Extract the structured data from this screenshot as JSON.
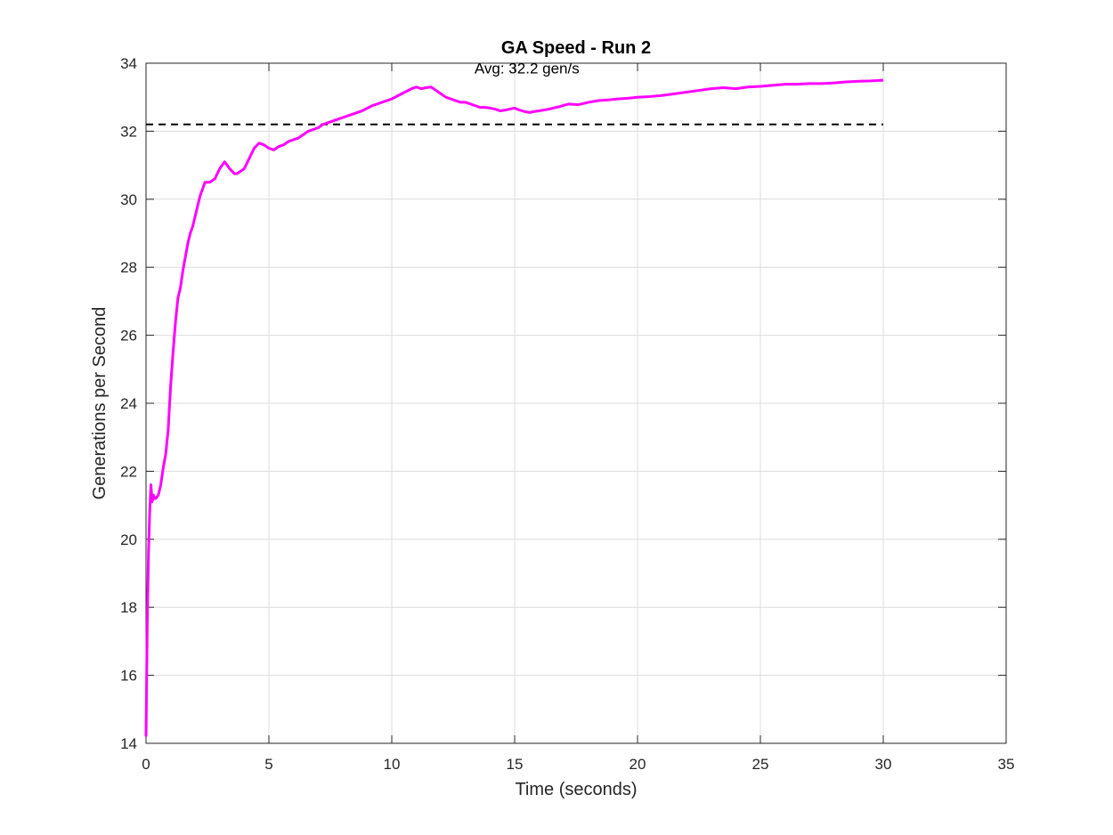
{
  "chart_data": {
    "type": "line",
    "title": "GA Speed - Run 2",
    "xlabel": "Time (seconds)",
    "ylabel": "Generations per Second",
    "xlim": [
      0,
      35
    ],
    "ylim": [
      14,
      34
    ],
    "xticks": [
      0,
      5,
      10,
      15,
      20,
      25,
      30,
      35
    ],
    "yticks": [
      14,
      16,
      18,
      20,
      22,
      24,
      26,
      28,
      30,
      32,
      34
    ],
    "grid": true,
    "colors": {
      "series": "#ff00ff",
      "average": "#000000",
      "grid": "#dcdcdc",
      "axis": "#262626"
    },
    "series": [
      {
        "x": [
          0.0,
          0.05,
          0.1,
          0.15,
          0.2,
          0.25,
          0.3,
          0.35,
          0.4,
          0.5,
          0.6,
          0.7,
          0.8,
          0.9,
          1.0,
          1.1,
          1.2,
          1.3,
          1.4,
          1.5,
          1.6,
          1.7,
          1.8,
          1.9,
          2.0,
          2.2,
          2.4,
          2.6,
          2.8,
          3.0,
          3.2,
          3.4,
          3.6,
          3.7,
          3.8,
          3.9,
          4.0,
          4.2,
          4.4,
          4.6,
          4.8,
          5.0,
          5.2,
          5.4,
          5.6,
          5.8,
          6.0,
          6.2,
          6.4,
          6.6,
          6.8,
          7.0,
          7.2,
          7.4,
          7.6,
          7.8,
          8.0,
          8.4,
          8.8,
          9.2,
          9.6,
          10.0,
          10.4,
          10.8,
          11.0,
          11.2,
          11.4,
          11.6,
          11.8,
          12.0,
          12.2,
          12.4,
          12.6,
          12.8,
          13.0,
          13.2,
          13.4,
          13.6,
          13.8,
          14.0,
          14.2,
          14.4,
          14.6,
          14.8,
          15.0,
          15.2,
          15.4,
          15.6,
          15.8,
          16.0,
          16.4,
          16.8,
          17.2,
          17.6,
          18.0,
          18.4,
          18.8,
          19.2,
          19.6,
          20.0,
          20.5,
          21.0,
          21.5,
          22.0,
          22.5,
          23.0,
          23.5,
          24.0,
          24.5,
          25.0,
          25.5,
          26.0,
          26.5,
          27.0,
          27.5,
          28.0,
          28.5,
          29.0,
          29.5,
          30.0
        ],
        "values": [
          14.2,
          17.5,
          19.6,
          20.8,
          21.6,
          21.1,
          21.3,
          21.2,
          21.2,
          21.3,
          21.6,
          22.1,
          22.5,
          23.2,
          24.5,
          25.5,
          26.4,
          27.1,
          27.4,
          27.9,
          28.3,
          28.7,
          29.0,
          29.2,
          29.5,
          30.1,
          30.5,
          30.5,
          30.6,
          30.9,
          31.1,
          30.9,
          30.75,
          30.75,
          30.8,
          30.85,
          30.9,
          31.2,
          31.5,
          31.65,
          31.6,
          31.5,
          31.45,
          31.55,
          31.6,
          31.7,
          31.75,
          31.8,
          31.9,
          32.0,
          32.05,
          32.1,
          32.2,
          32.25,
          32.3,
          32.35,
          32.4,
          32.5,
          32.6,
          32.75,
          32.85,
          32.95,
          33.1,
          33.25,
          33.3,
          33.25,
          33.28,
          33.3,
          33.2,
          33.1,
          33.0,
          32.95,
          32.9,
          32.85,
          32.85,
          32.8,
          32.75,
          32.7,
          32.7,
          32.68,
          32.65,
          32.6,
          32.62,
          32.65,
          32.68,
          32.62,
          32.58,
          32.55,
          32.58,
          32.6,
          32.65,
          32.72,
          32.8,
          32.78,
          32.85,
          32.9,
          32.92,
          32.95,
          32.97,
          33.0,
          33.02,
          33.05,
          33.1,
          33.15,
          33.2,
          33.25,
          33.28,
          33.25,
          33.3,
          33.32,
          33.35,
          33.38,
          33.38,
          33.4,
          33.4,
          33.42,
          33.45,
          33.47,
          33.48,
          33.5
        ]
      }
    ],
    "average": {
      "y": 32.2,
      "x_range": [
        0,
        30
      ],
      "label": "Avg: 32.2 gen/s",
      "label_x": 15.5,
      "label_y": 33.85
    }
  }
}
